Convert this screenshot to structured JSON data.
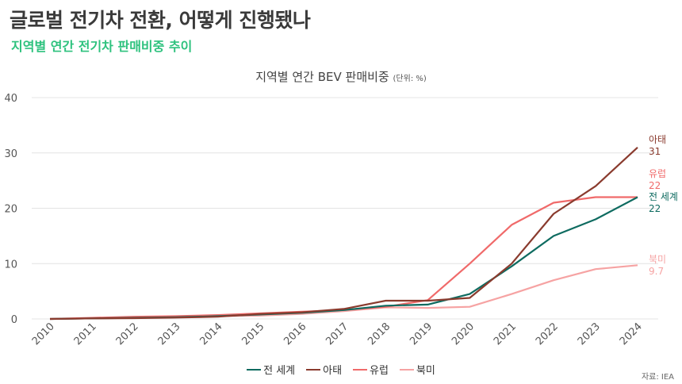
{
  "header": {
    "title": "글로벌 전기차 전환, 어떻게 진행됐나",
    "subtitle": "지역별 연간 전기차 판매비중 추이"
  },
  "source": "자료: IEA",
  "colors": {
    "world": "#0e6b60",
    "asia_pacific": "#8a3b2e",
    "europe": "#f06a6a",
    "north_america": "#f6a3a3",
    "grid": "#e4e4e4",
    "axis_text": "#555555"
  },
  "chart_data": {
    "type": "line",
    "title": "지역별 연간 BEV 판매비중",
    "title_unit": "(단위: %)",
    "xlabel": "",
    "ylabel": "",
    "x": [
      "2010",
      "2011",
      "2012",
      "2013",
      "2014",
      "2015",
      "2016",
      "2017",
      "2018",
      "2019",
      "2020",
      "2021",
      "2022",
      "2023",
      "2024"
    ],
    "ylim": [
      0,
      40
    ],
    "yticks": [
      "0",
      "10",
      "20",
      "30",
      "40"
    ],
    "grid": true,
    "legend_position": "bottom",
    "series": [
      {
        "name": "전 세계",
        "color_key": "world",
        "values": [
          0,
          0.1,
          0.2,
          0.3,
          0.5,
          0.8,
          1.1,
          1.6,
          2.4,
          2.6,
          4.5,
          9.5,
          15,
          18,
          22
        ],
        "end_label": "전 세계",
        "end_value": "22"
      },
      {
        "name": "아태",
        "color_key": "asia_pacific",
        "values": [
          0,
          0.1,
          0.15,
          0.25,
          0.4,
          0.9,
          1.2,
          1.8,
          3.3,
          3.3,
          3.8,
          10,
          19,
          24,
          31
        ],
        "end_label": "아태",
        "end_value": "31"
      },
      {
        "name": "유럽",
        "color_key": "europe",
        "values": [
          0,
          0.2,
          0.4,
          0.5,
          0.7,
          1.0,
          1.3,
          1.6,
          2.2,
          3.4,
          10,
          17,
          21,
          22,
          22
        ],
        "end_label": "유럽",
        "end_value": "22"
      },
      {
        "name": "북미",
        "color_key": "north_america",
        "values": [
          0,
          0.1,
          0.2,
          0.3,
          0.5,
          0.6,
          0.9,
          1.4,
          2.1,
          2.0,
          2.2,
          4.5,
          7,
          9,
          9.7
        ],
        "end_label": "북미",
        "end_value": "9.7"
      }
    ]
  }
}
